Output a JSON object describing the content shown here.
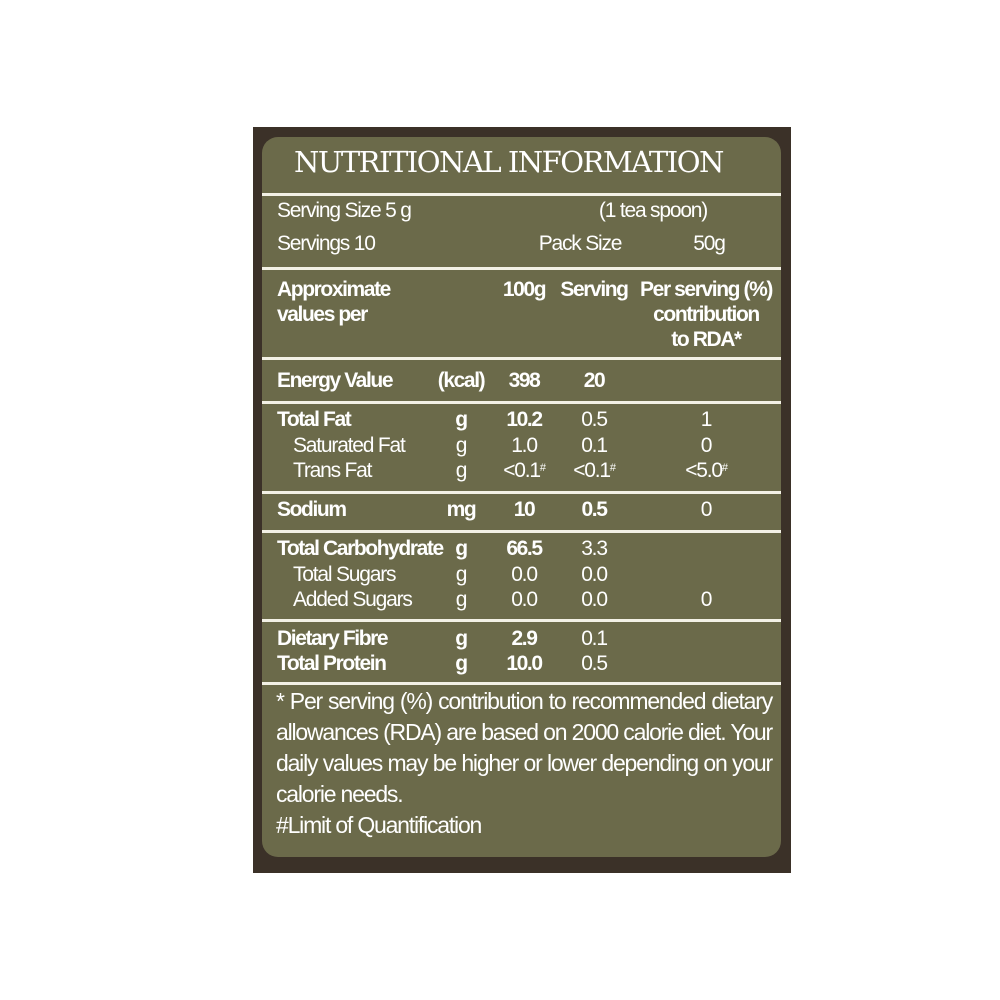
{
  "title": "NUTRITIONAL INFORMATION",
  "serving": {
    "serving_size": "Serving Size  5 g",
    "serving_note": "(1 tea spoon)",
    "servings": "Servings 10",
    "pack_size_label": "Pack Size",
    "pack_size_value": "50g"
  },
  "header": {
    "label_line1": "Approximate",
    "label_line2": "values per",
    "col_100g": "100g",
    "col_serving": "Serving",
    "col_rda_line1": "Per serving (%)",
    "col_rda_line2": "contribution",
    "col_rda_line3": "to RDA*"
  },
  "rows": [
    {
      "name": "Energy Value",
      "unit": "(kcal)",
      "per100": "398",
      "serving": "20",
      "rda": ""
    },
    {
      "name": "Total Fat",
      "unit": "g",
      "per100": "10.2",
      "serving": "0.5",
      "rda": "1"
    },
    {
      "name": "Saturated Fat",
      "unit": "g",
      "per100": "1.0",
      "serving": "0.1",
      "rda": "0"
    },
    {
      "name": "Trans Fat",
      "unit": "g",
      "per100": "<0.1",
      "serving": "<0.1",
      "rda": "<5.0",
      "mark": "#"
    },
    {
      "name": "Sodium",
      "unit": "mg",
      "per100": "10",
      "serving": "0.5",
      "rda": "0"
    },
    {
      "name": "Total Carbohydrate",
      "unit": "g",
      "per100": "66.5",
      "serving": "3.3",
      "rda": ""
    },
    {
      "name": "Total Sugars",
      "unit": "g",
      "per100": "0.0",
      "serving": "0.0",
      "rda": ""
    },
    {
      "name": "Added Sugars",
      "unit": "g",
      "per100": "0.0",
      "serving": "0.0",
      "rda": "0"
    },
    {
      "name": "Dietary Fibre",
      "unit": "g",
      "per100": "2.9",
      "serving": "0.1",
      "rda": ""
    },
    {
      "name": "Total Protein",
      "unit": "g",
      "per100": "10.0",
      "serving": "0.5",
      "rda": ""
    }
  ],
  "footnote": "* Per serving (%) contribution to recommended dietary allowances (RDA) are based on 2000 calorie diet. Your daily values may be higher or lower depending on your calorie needs.",
  "footnote2": "#Limit of Quantification",
  "colors": {
    "frame": "#3b3128",
    "panel": "#6b6a4a",
    "text": "#ffffff"
  }
}
